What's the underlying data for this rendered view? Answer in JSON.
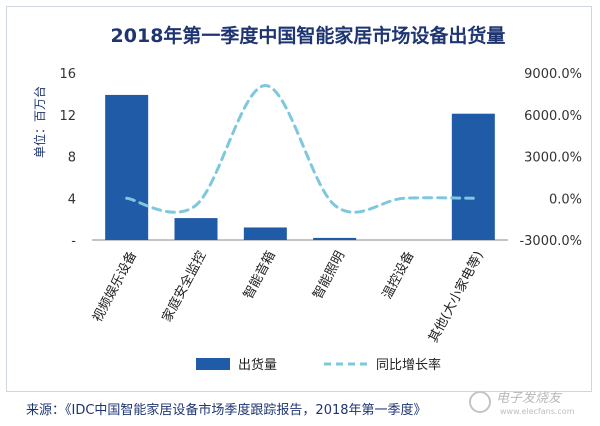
{
  "chart_data": {
    "type": "bar",
    "title": "2018年第一季度中国智能家居市场设备出货量",
    "ylabel": "单位：百万台",
    "categories": [
      "视频娱乐设备",
      "家庭安全监控",
      "智能音箱",
      "智能照明",
      "温控设备",
      "其他(大小家电等)"
    ],
    "ylim": [
      0,
      16
    ],
    "y_ticks": [
      "16",
      "12",
      "8",
      "4",
      "-"
    ],
    "y2lim": [
      -3000,
      9000
    ],
    "y2_ticks": [
      "9000.0%",
      "6000.0%",
      "3000.0%",
      "0.0%",
      "-3000.0%"
    ],
    "series": [
      {
        "name": "出货量",
        "type": "bar",
        "axis": "left",
        "color": "#1f5ba6",
        "values": [
          13.9,
          2.1,
          1.2,
          0.2,
          0.0,
          12.1
        ]
      },
      {
        "name": "同比增长率",
        "type": "line",
        "style": "dashed",
        "axis": "right",
        "color": "#7ec8dd",
        "values": [
          0,
          -500,
          8100,
          -500,
          0,
          0
        ]
      }
    ],
    "legend_position": "bottom",
    "grid": false
  },
  "source": "来源：《IDC中国智能家居设备市场季度跟踪报告，2018年第一季度》",
  "watermark": {
    "text": "电子发烧友",
    "url": "www.elecfans.com"
  },
  "colors": {
    "bar": "#1f5ba6",
    "line": "#7ec8dd",
    "title": "#1f3572"
  }
}
